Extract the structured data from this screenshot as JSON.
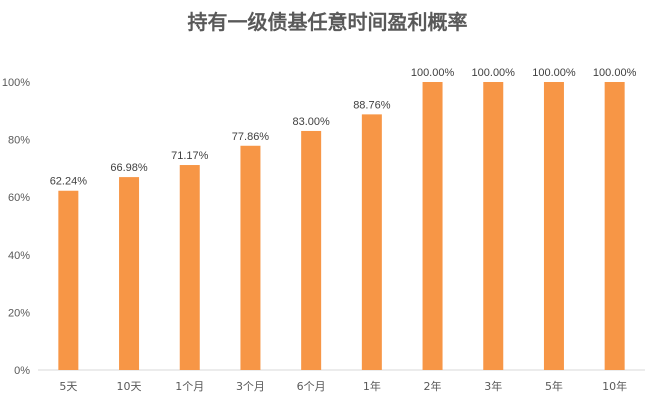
{
  "chart_data": {
    "type": "bar",
    "title": "持有一级债基任意时间盈利概率",
    "categories": [
      "5天",
      "10天",
      "1个月",
      "3个月",
      "6个月",
      "1年",
      "2年",
      "3年",
      "5年",
      "10年"
    ],
    "values": [
      62.24,
      66.98,
      71.17,
      77.86,
      83.0,
      88.76,
      100.0,
      100.0,
      100.0,
      100.0
    ],
    "data_labels": [
      "62.24%",
      "66.98%",
      "71.17%",
      "77.86%",
      "83.00%",
      "88.76%",
      "100.00%",
      "100.00%",
      "100.00%",
      "100.00%"
    ],
    "y_ticks": [
      0,
      20,
      40,
      60,
      80,
      100
    ],
    "y_tick_labels": [
      "0%",
      "20%",
      "40%",
      "60%",
      "80%",
      "100%"
    ],
    "ylim": [
      0,
      100
    ],
    "xlabel": "",
    "ylabel": "",
    "grid": false,
    "legend": "none",
    "bar_color": "#F79646"
  }
}
